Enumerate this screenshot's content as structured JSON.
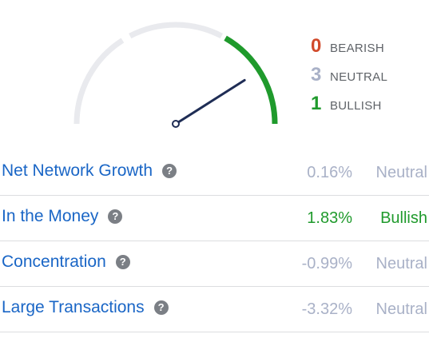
{
  "colors": {
    "bearish": "#d14a2b",
    "neutral": "#a9b1c7",
    "bullish": "#1f9a2c",
    "gauge_track": "#e9eaee",
    "needle": "#1f2d55",
    "link": "#1a66c6"
  },
  "gauge": {
    "bullish_fraction": 0.333,
    "needle_fraction": 0.82
  },
  "legend": [
    {
      "count": "0",
      "label": "BEARISH",
      "tone": "bearish"
    },
    {
      "count": "3",
      "label": "NEUTRAL",
      "tone": "neutral"
    },
    {
      "count": "1",
      "label": "BULLISH",
      "tone": "bullish"
    }
  ],
  "rows": [
    {
      "label": "Net Network Growth",
      "value": "0.16%",
      "signal": "Neutral",
      "tone": "neutral",
      "help_icon": "question-circle-icon"
    },
    {
      "label": "In the Money",
      "value": "1.83%",
      "signal": "Bullish",
      "tone": "bullish",
      "help_icon": "question-circle-icon"
    },
    {
      "label": "Concentration",
      "value": "-0.99%",
      "signal": "Neutral",
      "tone": "neutral",
      "help_icon": "question-circle-icon"
    },
    {
      "label": "Large Transactions",
      "value": "-3.32%",
      "signal": "Neutral",
      "tone": "neutral",
      "help_icon": "question-circle-icon"
    }
  ]
}
